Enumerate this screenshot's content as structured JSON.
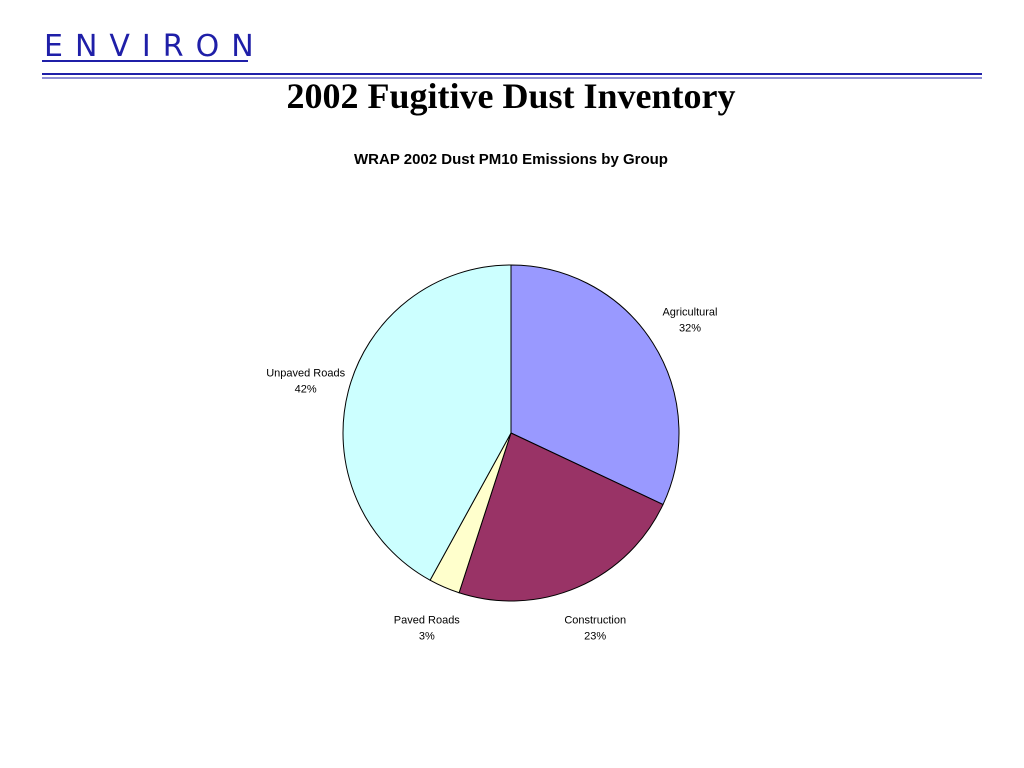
{
  "header": {
    "logo": "ENVIRON",
    "title": "2002 Fugitive Dust Inventory"
  },
  "chart_data": {
    "type": "pie",
    "title": "WRAP 2002 Dust PM10 Emissions by Group",
    "categories": [
      "Agricultural",
      "Construction",
      "Paved Roads",
      "Unpaved Roads"
    ],
    "values": [
      32,
      23,
      3,
      42
    ],
    "value_labels": [
      "32%",
      "23%",
      "3%",
      "42%"
    ],
    "colors": [
      "#9999ff",
      "#993366",
      "#ffffcc",
      "#ccffff"
    ]
  }
}
